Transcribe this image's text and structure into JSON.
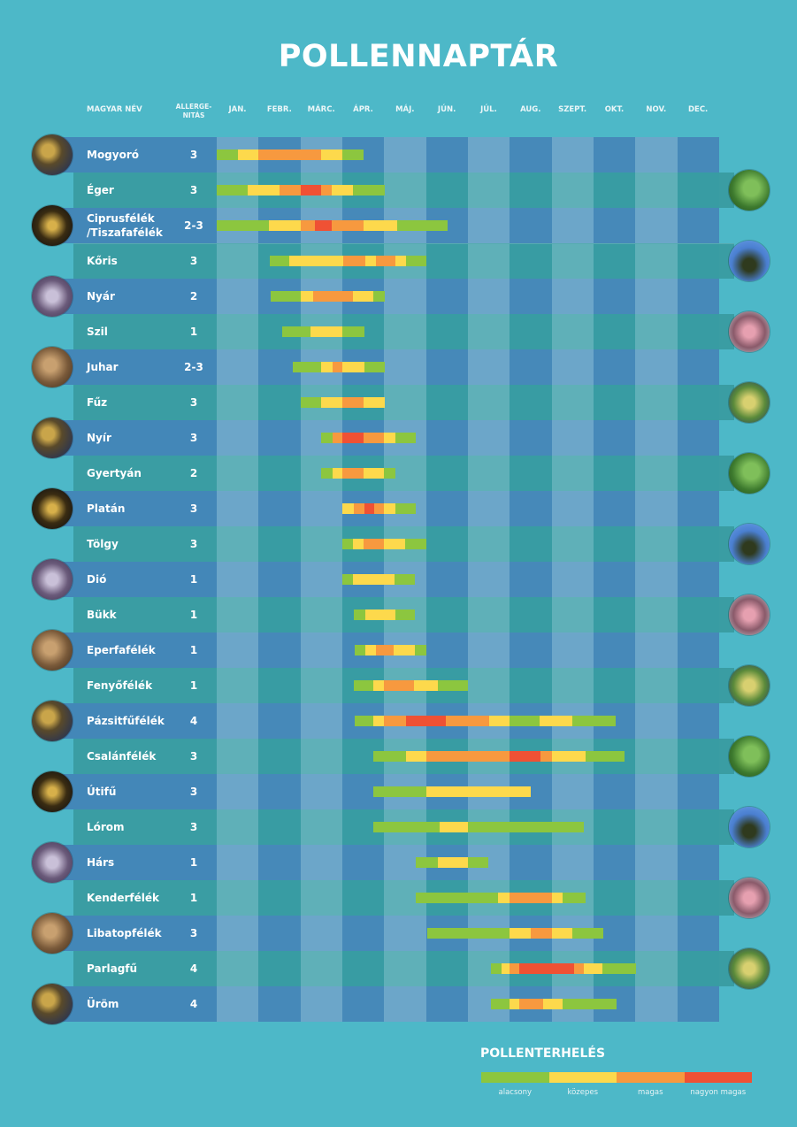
{
  "header": {
    "title": "POLLENNAPTÁR",
    "col_name": "MAGYAR NÉV",
    "col_allergenity_line1": "ALLERGE-",
    "col_allergenity_line2": "NITÁS"
  },
  "colors": {
    "background": "#4db8c8",
    "levels": [
      "#8cc63f",
      "#fdd94c",
      "#f7993f",
      "#ef5134"
    ]
  },
  "legend": {
    "title": "POLLENTERHELÉS",
    "labels": [
      "alacsony",
      "közepes",
      "magas",
      "nagyon magas"
    ]
  },
  "chart_data": {
    "type": "gantt",
    "title": "POLLENNAPTÁR",
    "x_unit": "month (0 = start of January, 12 = end of December)",
    "xlim": [
      0,
      12
    ],
    "months": [
      "JAN.",
      "FEBR.",
      "MÁRC.",
      "ÁPR.",
      "MÁJ.",
      "JÚN.",
      "JÚL.",
      "AUG.",
      "SZEPT.",
      "OKT.",
      "NOV.",
      "DEC."
    ],
    "levels": [
      "alacsony",
      "közepes",
      "magas",
      "nagyon magas"
    ],
    "rows": [
      {
        "name": "Mogyoró",
        "allergenity": "3",
        "segments": [
          [
            0,
            0.5,
            0
          ],
          [
            0.5,
            1,
            1
          ],
          [
            1,
            2.5,
            2
          ],
          [
            2.5,
            3,
            1
          ],
          [
            3,
            3.5,
            0
          ]
        ]
      },
      {
        "name": "Éger",
        "allergenity": "3",
        "segments": [
          [
            0,
            0.75,
            0
          ],
          [
            0.75,
            1.5,
            1
          ],
          [
            1.5,
            2,
            2
          ],
          [
            2,
            2.5,
            3
          ],
          [
            2.5,
            2.75,
            2
          ],
          [
            2.75,
            3.25,
            1
          ],
          [
            3.25,
            4,
            0
          ]
        ]
      },
      {
        "name": "Ciprusfélék\n/Tiszafafélék",
        "allergenity": "2-3",
        "segments": [
          [
            0,
            1.25,
            0
          ],
          [
            1.25,
            2,
            1
          ],
          [
            2,
            2.35,
            2
          ],
          [
            2.35,
            2.75,
            3
          ],
          [
            2.75,
            3.5,
            2
          ],
          [
            3.5,
            4.3,
            1
          ],
          [
            4.3,
            5.5,
            0
          ]
        ]
      },
      {
        "name": "Kőris",
        "allergenity": "3",
        "segments": [
          [
            1.27,
            1.73,
            0
          ],
          [
            1.73,
            3.03,
            1
          ],
          [
            3.03,
            3.54,
            2
          ],
          [
            3.54,
            3.8,
            1
          ],
          [
            3.8,
            4.27,
            2
          ],
          [
            4.27,
            4.53,
            1
          ],
          [
            4.53,
            5,
            0
          ]
        ]
      },
      {
        "name": "Nyár",
        "allergenity": "2",
        "segments": [
          [
            1.28,
            2,
            0
          ],
          [
            2,
            2.3,
            1
          ],
          [
            2.3,
            3.25,
            2
          ],
          [
            3.25,
            3.73,
            1
          ],
          [
            3.73,
            4,
            0
          ]
        ]
      },
      {
        "name": "Szil",
        "allergenity": "1",
        "segments": [
          [
            1.57,
            2.23,
            0
          ],
          [
            2.23,
            3,
            1
          ],
          [
            3,
            3.52,
            0
          ]
        ]
      },
      {
        "name": "Juhar",
        "allergenity": "2-3",
        "segments": [
          [
            1.81,
            2.5,
            0
          ],
          [
            2.5,
            2.76,
            1
          ],
          [
            2.76,
            3,
            2
          ],
          [
            3,
            3.52,
            1
          ],
          [
            3.52,
            4,
            0
          ]
        ]
      },
      {
        "name": "Fűz",
        "allergenity": "3",
        "segments": [
          [
            2,
            2.5,
            0
          ],
          [
            2.5,
            3,
            1
          ],
          [
            3,
            3.5,
            2
          ],
          [
            3.5,
            4,
            1
          ]
        ]
      },
      {
        "name": "Nyír",
        "allergenity": "3",
        "segments": [
          [
            2.5,
            2.76,
            0
          ],
          [
            2.76,
            3,
            2
          ],
          [
            3,
            3.5,
            3
          ],
          [
            3.5,
            4,
            2
          ],
          [
            4,
            4.26,
            1
          ],
          [
            4.26,
            4.74,
            0
          ]
        ]
      },
      {
        "name": "Gyertyán",
        "allergenity": "2",
        "segments": [
          [
            2.5,
            2.76,
            0
          ],
          [
            2.76,
            3,
            1
          ],
          [
            3,
            3.5,
            2
          ],
          [
            3.5,
            4,
            1
          ],
          [
            4,
            4.26,
            0
          ]
        ]
      },
      {
        "name": "Platán",
        "allergenity": "3",
        "segments": [
          [
            3,
            3.27,
            1
          ],
          [
            3.27,
            3.52,
            2
          ],
          [
            3.52,
            3.77,
            3
          ],
          [
            3.77,
            4,
            2
          ],
          [
            4,
            4.26,
            1
          ],
          [
            4.26,
            4.74,
            0
          ]
        ]
      },
      {
        "name": "Tölgy",
        "allergenity": "3",
        "segments": [
          [
            3,
            3.25,
            0
          ],
          [
            3.25,
            3.5,
            1
          ],
          [
            3.5,
            4,
            2
          ],
          [
            4,
            4.5,
            1
          ],
          [
            4.5,
            5,
            0
          ]
        ]
      },
      {
        "name": "Dió",
        "allergenity": "1",
        "segments": [
          [
            3,
            3.25,
            0
          ],
          [
            3.25,
            4.25,
            1
          ],
          [
            4.25,
            4.72,
            0
          ]
        ]
      },
      {
        "name": "Bükk",
        "allergenity": "1",
        "segments": [
          [
            3.27,
            3.54,
            0
          ],
          [
            3.54,
            4.26,
            1
          ],
          [
            4.26,
            4.72,
            0
          ]
        ]
      },
      {
        "name": "Eperfafélék",
        "allergenity": "1",
        "segments": [
          [
            3.3,
            3.56,
            0
          ],
          [
            3.56,
            3.8,
            1
          ],
          [
            3.8,
            4.23,
            2
          ],
          [
            4.23,
            4.73,
            1
          ],
          [
            4.73,
            5,
            0
          ]
        ]
      },
      {
        "name": "Fenyőfélék",
        "allergenity": "1",
        "segments": [
          [
            3.27,
            3.75,
            0
          ],
          [
            3.75,
            4,
            1
          ],
          [
            4,
            4.72,
            2
          ],
          [
            4.72,
            5.28,
            1
          ],
          [
            5.28,
            6,
            0
          ]
        ]
      },
      {
        "name": "Pázsitfűfélék",
        "allergenity": "4",
        "segments": [
          [
            3.29,
            3.75,
            0
          ],
          [
            3.75,
            4,
            1
          ],
          [
            4,
            4.53,
            2
          ],
          [
            4.53,
            5.47,
            3
          ],
          [
            5.47,
            6.5,
            2
          ],
          [
            6.5,
            7,
            1
          ],
          [
            7,
            7.71,
            0
          ],
          [
            7.71,
            8.5,
            1
          ],
          [
            8.5,
            9.52,
            0
          ]
        ]
      },
      {
        "name": "Csalánfélék",
        "allergenity": "3",
        "segments": [
          [
            3.75,
            4.53,
            0
          ],
          [
            4.53,
            5,
            1
          ],
          [
            5,
            7,
            2
          ],
          [
            7,
            7.73,
            3
          ],
          [
            7.73,
            8,
            2
          ],
          [
            8,
            8.8,
            1
          ],
          [
            8.8,
            9.73,
            0
          ]
        ]
      },
      {
        "name": "Útifű",
        "allergenity": "3",
        "segments": [
          [
            3.75,
            5,
            0
          ],
          [
            5,
            7.5,
            1
          ]
        ]
      },
      {
        "name": "Lórom",
        "allergenity": "3",
        "segments": [
          [
            3.75,
            5.32,
            0
          ],
          [
            5.32,
            6,
            1
          ],
          [
            6,
            8.75,
            0
          ]
        ]
      },
      {
        "name": "Hárs",
        "allergenity": "1",
        "segments": [
          [
            4.75,
            5.28,
            0
          ],
          [
            5.28,
            6,
            1
          ],
          [
            6,
            6.48,
            0
          ]
        ]
      },
      {
        "name": "Kenderfélék",
        "allergenity": "1",
        "segments": [
          [
            4.75,
            6.71,
            0
          ],
          [
            6.71,
            7,
            1
          ],
          [
            7,
            8,
            2
          ],
          [
            8,
            8.26,
            1
          ],
          [
            8.26,
            8.79,
            0
          ]
        ]
      },
      {
        "name": "Libatopfélék",
        "allergenity": "3",
        "segments": [
          [
            5.03,
            7,
            0
          ],
          [
            7,
            7.5,
            1
          ],
          [
            7.5,
            8,
            2
          ],
          [
            8,
            8.5,
            1
          ],
          [
            8.5,
            9.23,
            0
          ]
        ]
      },
      {
        "name": "Parlagfű",
        "allergenity": "4",
        "segments": [
          [
            6.56,
            6.8,
            0
          ],
          [
            6.8,
            7,
            1
          ],
          [
            7,
            7.23,
            2
          ],
          [
            7.23,
            8.54,
            3
          ],
          [
            8.54,
            8.77,
            2
          ],
          [
            8.77,
            9.21,
            1
          ],
          [
            9.21,
            10,
            0
          ]
        ]
      },
      {
        "name": "Üröm",
        "allergenity": "4",
        "segments": [
          [
            6.56,
            7,
            0
          ],
          [
            7,
            7.22,
            1
          ],
          [
            7.22,
            7.8,
            2
          ],
          [
            7.8,
            8.26,
            1
          ],
          [
            8.26,
            9.53,
            0
          ]
        ]
      }
    ]
  }
}
